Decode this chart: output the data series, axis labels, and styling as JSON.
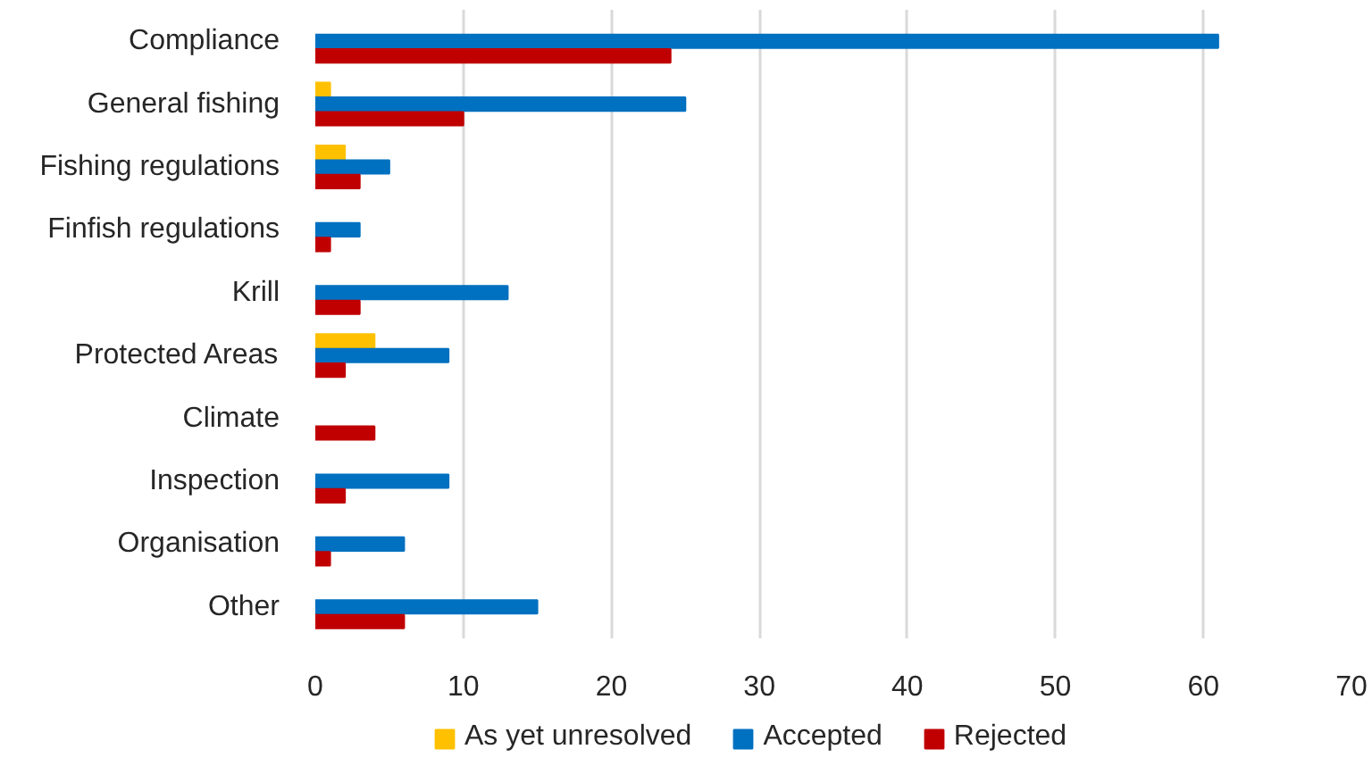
{
  "chart_data": {
    "type": "bar",
    "orientation": "horizontal",
    "categories": [
      "Compliance",
      "General fishing",
      "Fishing regulations",
      "Finfish regulations",
      "Krill",
      "Protected Areas",
      "Climate",
      "Inspection",
      "Organisation",
      "Other"
    ],
    "series": [
      {
        "name": "As yet unresolved",
        "color": "#ffc000",
        "values": [
          0,
          1,
          2,
          0,
          0,
          4,
          0,
          0,
          0,
          0
        ]
      },
      {
        "name": "Accepted",
        "color": "#0070c0",
        "values": [
          61,
          25,
          5,
          3,
          13,
          9,
          0,
          9,
          6,
          15
        ]
      },
      {
        "name": "Rejected",
        "color": "#c00000",
        "values": [
          24,
          10,
          3,
          1,
          3,
          2,
          4,
          2,
          1,
          6
        ]
      }
    ],
    "xlim": [
      0,
      70
    ],
    "xticks": [
      0,
      10,
      20,
      30,
      40,
      50,
      60,
      70
    ],
    "grid": "x",
    "legend": "bottom"
  }
}
